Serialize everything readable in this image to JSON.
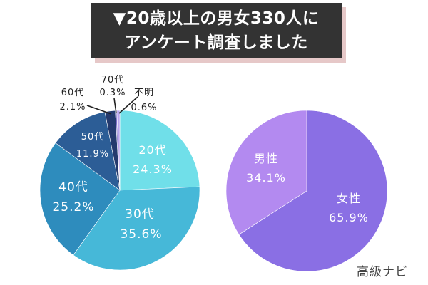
{
  "header": {
    "title_line1": "▼20歳以上の男女330人に",
    "title_line2": "アンケート調査しました"
  },
  "credit": "高級ナビ",
  "colors": {
    "title_bg": "#333333",
    "title_shadow": "#e6c8c8",
    "age_20s": "#70dfe9",
    "age_30s": "#46b8d8",
    "age_40s": "#2e8cbd",
    "age_50s": "#2c5d96",
    "age_60s": "#243a6e",
    "age_70s": "#7c6cc4",
    "age_unknown": "#b8a3ec",
    "female": "#8a6fe4",
    "male": "#b38af0"
  },
  "chart_data": [
    {
      "type": "pie",
      "slices": [
        {
          "key": "age_20s",
          "label": "20代",
          "value": 24.3,
          "value_text": "24.3%"
        },
        {
          "key": "age_30s",
          "label": "30代",
          "value": 35.6,
          "value_text": "35.6%"
        },
        {
          "key": "age_40s",
          "label": "40代",
          "value": 25.2,
          "value_text": "25.2%"
        },
        {
          "key": "age_50s",
          "label": "50代",
          "value": 11.9,
          "value_text": "11.9%"
        },
        {
          "key": "age_60s",
          "label": "60代",
          "value": 2.1,
          "value_text": "2.1%"
        },
        {
          "key": "age_70s",
          "label": "70代",
          "value": 0.3,
          "value_text": "0.3%"
        },
        {
          "key": "age_unknown",
          "label": "不明",
          "value": 0.6,
          "value_text": "0.6%"
        }
      ]
    },
    {
      "type": "pie",
      "slices": [
        {
          "key": "female",
          "label": "女性",
          "value": 65.9,
          "value_text": "65.9%"
        },
        {
          "key": "male",
          "label": "男性",
          "value": 34.1,
          "value_text": "34.1%"
        }
      ]
    }
  ]
}
